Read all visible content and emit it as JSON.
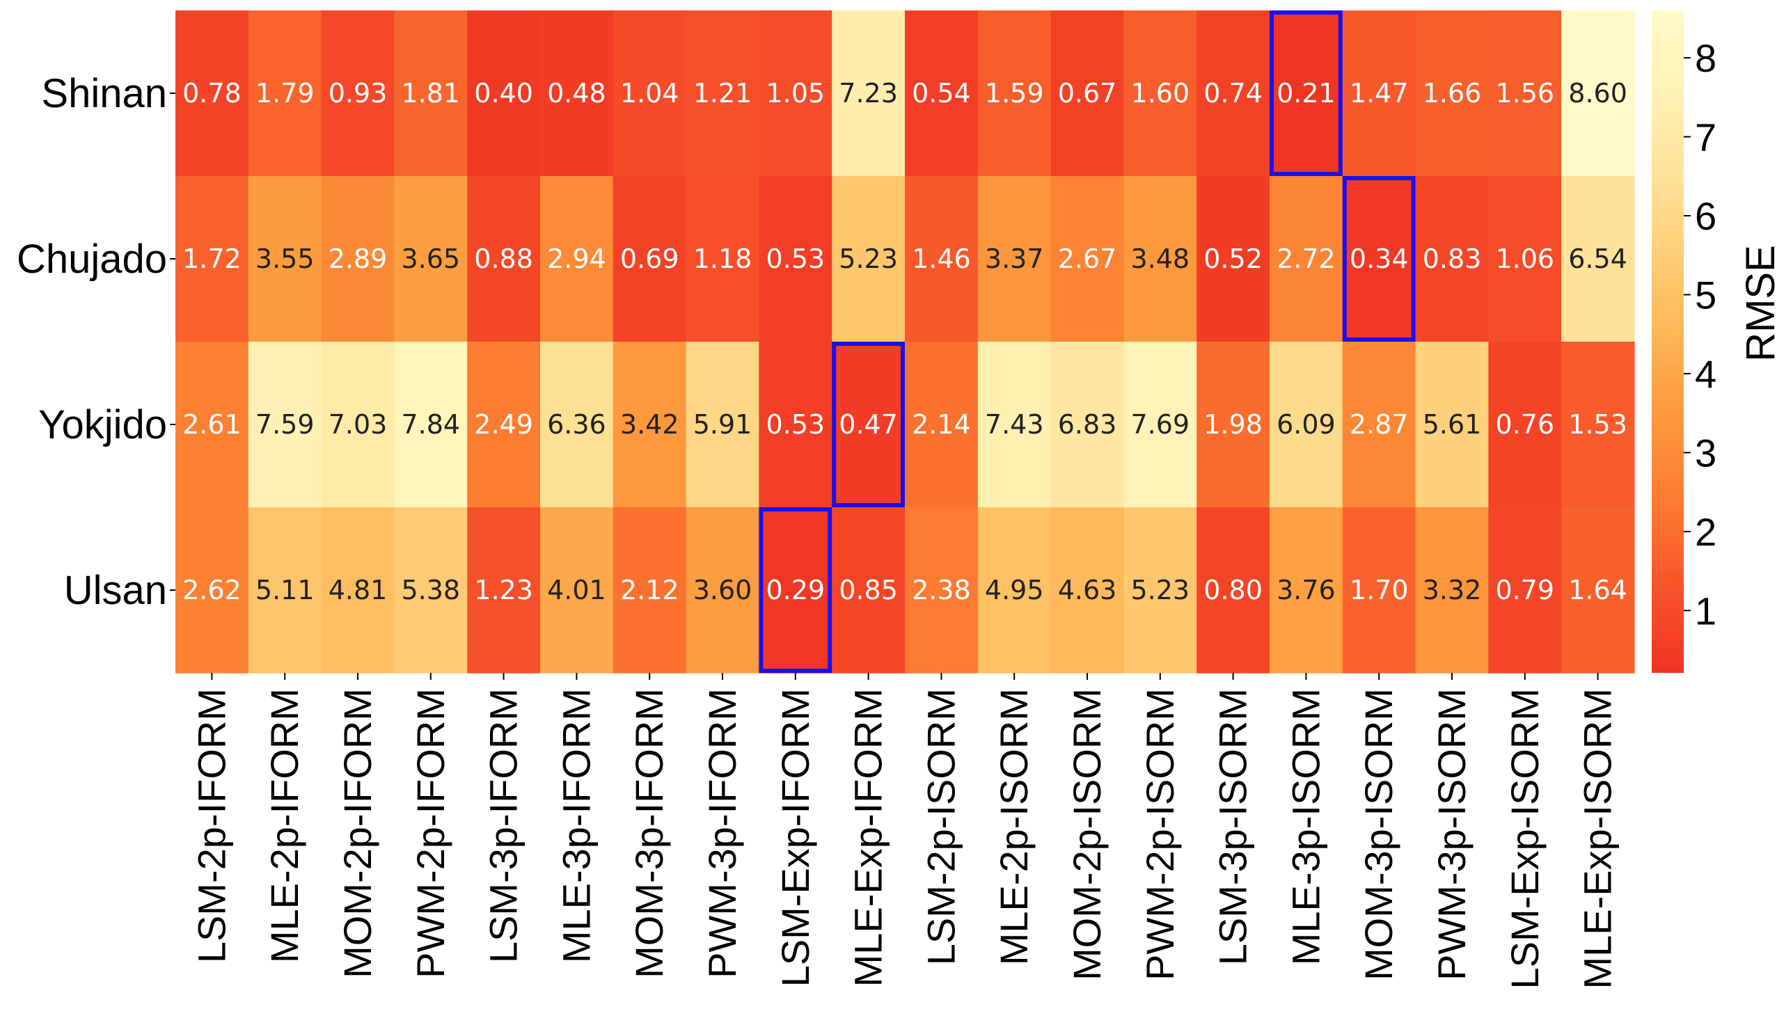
{
  "chart_data": {
    "type": "heatmap",
    "rows": [
      "Shinan",
      "Chujado",
      "Yokjido",
      "Ulsan"
    ],
    "columns": [
      "LSM-2p-IFORM",
      "MLE-2p-IFORM",
      "MOM-2p-IFORM",
      "PWM-2p-IFORM",
      "LSM-3p-IFORM",
      "MLE-3p-IFORM",
      "MOM-3p-IFORM",
      "PWM-3p-IFORM",
      "LSM-Exp-IFORM",
      "MLE-Exp-IFORM",
      "LSM-2p-ISORM",
      "MLE-2p-ISORM",
      "MOM-2p-ISORM",
      "PWM-2p-ISORM",
      "LSM-3p-ISORM",
      "MLE-3p-ISORM",
      "MOM-3p-ISORM",
      "PWM-3p-ISORM",
      "LSM-Exp-ISORM",
      "MLE-Exp-ISORM"
    ],
    "values": [
      [
        0.78,
        1.79,
        0.93,
        1.81,
        0.4,
        0.48,
        1.04,
        1.21,
        1.05,
        7.23,
        0.54,
        1.59,
        0.67,
        1.6,
        0.74,
        0.21,
        1.47,
        1.66,
        1.56,
        8.6
      ],
      [
        1.72,
        3.55,
        2.89,
        3.65,
        0.88,
        2.94,
        0.69,
        1.18,
        0.53,
        5.23,
        1.46,
        3.37,
        2.67,
        3.48,
        0.52,
        2.72,
        0.34,
        0.83,
        1.06,
        6.54
      ],
      [
        2.61,
        7.59,
        7.03,
        7.84,
        2.49,
        6.36,
        3.42,
        5.91,
        0.53,
        0.47,
        2.14,
        7.43,
        6.83,
        7.69,
        1.98,
        6.09,
        2.87,
        5.61,
        0.76,
        1.53
      ],
      [
        2.62,
        5.11,
        4.81,
        5.38,
        1.23,
        4.01,
        2.12,
        3.6,
        0.29,
        0.85,
        2.38,
        4.95,
        4.63,
        5.23,
        0.8,
        3.76,
        1.7,
        3.32,
        0.79,
        1.64
      ]
    ],
    "value_labels": [
      [
        "0.78",
        "1.79",
        "0.93",
        "1.81",
        "0.40",
        "0.48",
        "1.04",
        "1.21",
        "1.05",
        "7.23",
        "0.54",
        "1.59",
        "0.67",
        "1.60",
        "0.74",
        "0.21",
        "1.47",
        "1.66",
        "1.56",
        "8.60"
      ],
      [
        "1.72",
        "3.55",
        "2.89",
        "3.65",
        "0.88",
        "2.94",
        "0.69",
        "1.18",
        "0.53",
        "5.23",
        "1.46",
        "3.37",
        "2.67",
        "3.48",
        "0.52",
        "2.72",
        "0.34",
        "0.83",
        "1.06",
        "6.54"
      ],
      [
        "2.61",
        "7.59",
        "7.03",
        "7.84",
        "2.49",
        "6.36",
        "3.42",
        "5.91",
        "0.53",
        "0.47",
        "2.14",
        "7.43",
        "6.83",
        "7.69",
        "1.98",
        "6.09",
        "2.87",
        "5.61",
        "0.76",
        "1.53"
      ],
      [
        "2.62",
        "5.11",
        "4.81",
        "5.38",
        "1.23",
        "4.01",
        "2.12",
        "3.60",
        "0.29",
        "0.85",
        "2.38",
        "4.95",
        "4.63",
        "5.23",
        "0.80",
        "3.76",
        "1.70",
        "3.32",
        "0.79",
        "1.64"
      ]
    ],
    "highlighted_cells": [
      {
        "row": 0,
        "col": 15
      },
      {
        "row": 1,
        "col": 16
      },
      {
        "row": 2,
        "col": 9
      },
      {
        "row": 3,
        "col": 8
      }
    ],
    "colorbar": {
      "label": "RMSE",
      "range": [
        0.21,
        8.6
      ],
      "ticks": [
        1,
        2,
        3,
        4,
        5,
        6,
        7,
        8
      ],
      "tick_labels": [
        "1",
        "2",
        "3",
        "4",
        "5",
        "6",
        "7",
        "8"
      ],
      "colormap": "YlOrRd_r"
    },
    "colors": {
      "low": "#f03523",
      "mid": "#fd9a3e",
      "high": "#fffac6",
      "highlight_border": "#1a10e8",
      "text_light": "#ffffff",
      "text_dark": "#222222"
    }
  }
}
